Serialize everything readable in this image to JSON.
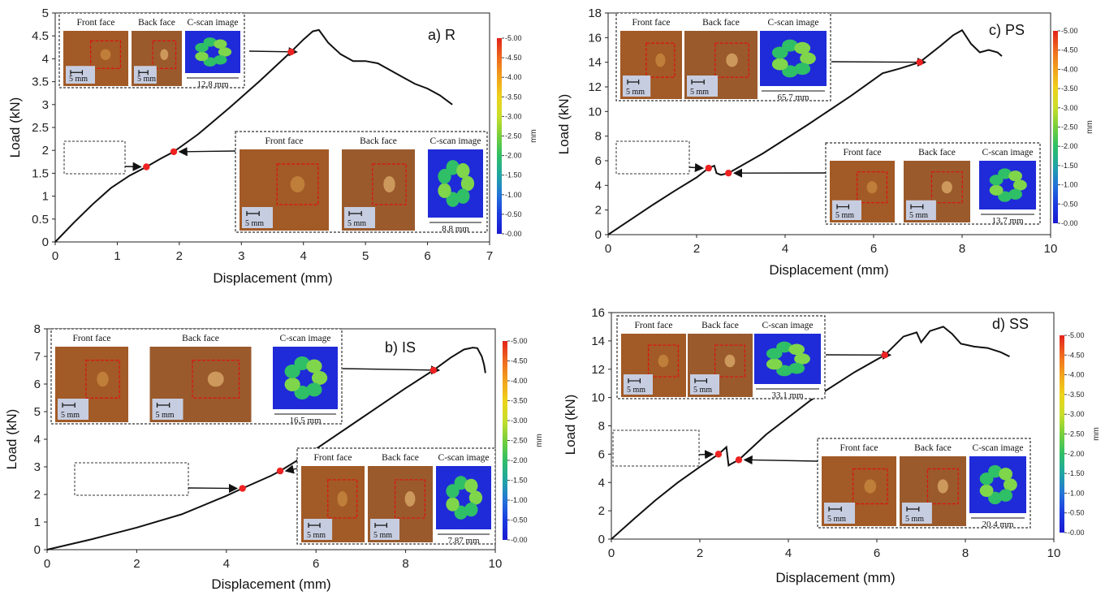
{
  "colors": {
    "curve": "#111111",
    "marker": "#ee2222",
    "inset_box": "#333333",
    "roi_box": "#dd1111",
    "cscan_bg": "#1f2bd8"
  },
  "colorbar": {
    "unit": "mm",
    "labels": [
      "-5.00",
      "-4.50",
      "-4.00",
      "-3.50",
      "-3.00",
      "-2.50",
      "-2.00",
      "-1.50",
      "-1.00",
      "-0.50",
      "-0.00"
    ],
    "stops": [
      "#e2231a",
      "#ef6a1f",
      "#f2a21c",
      "#eed21a",
      "#c8de2b",
      "#76cf3a",
      "#2fbf66",
      "#1fa6a4",
      "#2474d8",
      "#1b3be0",
      "#1a1ad0"
    ]
  },
  "inset_text": {
    "front": "Front face",
    "back": "Back face",
    "cscan": "C-scan image"
  },
  "chart_data": [
    {
      "id": "R",
      "type": "line",
      "title": "a) R",
      "xlabel": "Displacement (mm)",
      "ylabel": "Load (kN)",
      "xlim": [
        0,
        7
      ],
      "ylim": [
        0,
        5
      ],
      "xticks": [
        "0",
        "1",
        "2",
        "3",
        "4",
        "5",
        "6",
        "7"
      ],
      "yticks": [
        "0",
        "0.5",
        "1",
        "1.5",
        "2",
        "2.5",
        "3",
        "3.5",
        "4",
        "4.5",
        "5"
      ],
      "x": [
        0,
        0.3,
        0.6,
        0.9,
        1.2,
        1.47,
        1.7,
        1.91,
        2.3,
        2.8,
        3.3,
        3.8,
        4.0,
        4.15,
        4.25,
        4.4,
        4.6,
        4.8,
        5.0,
        5.2,
        5.4,
        5.6,
        5.8,
        6.0,
        6.2,
        6.4
      ],
      "y": [
        0,
        0.42,
        0.82,
        1.18,
        1.45,
        1.64,
        1.82,
        1.97,
        2.35,
        2.92,
        3.52,
        4.15,
        4.42,
        4.6,
        4.63,
        4.35,
        4.1,
        3.95,
        3.95,
        3.9,
        3.75,
        3.6,
        3.45,
        3.35,
        3.2,
        3.0
      ],
      "markers": [
        {
          "x": 1.47,
          "y": 1.64
        },
        {
          "x": 1.91,
          "y": 1.97
        },
        {
          "x": 3.8,
          "y": 4.15
        }
      ],
      "insets": {
        "upper": {
          "dim": "12.8 mm",
          "scale": "5 mm"
        },
        "lower": {
          "dim": "8.8 mm",
          "scale": "5 mm"
        }
      }
    },
    {
      "id": "IS",
      "type": "line",
      "title": "b) IS",
      "xlabel": "Displacement (mm)",
      "ylabel": "Load (kN)",
      "xlim": [
        0,
        10
      ],
      "ylim": [
        0,
        8
      ],
      "xticks": [
        "0",
        "2",
        "4",
        "6",
        "8",
        "10"
      ],
      "yticks": [
        "0",
        "1",
        "2",
        "3",
        "4",
        "5",
        "6",
        "7",
        "8"
      ],
      "x": [
        0,
        1,
        2,
        3,
        4,
        4.36,
        5,
        5.2,
        6,
        7,
        8,
        8.62,
        9,
        9.3,
        9.5,
        9.6,
        9.7,
        9.75,
        9.78
      ],
      "y": [
        0,
        0.38,
        0.8,
        1.28,
        1.95,
        2.22,
        2.68,
        2.85,
        3.65,
        4.75,
        5.85,
        6.5,
        6.95,
        7.25,
        7.32,
        7.3,
        7.0,
        6.7,
        6.4
      ],
      "markers": [
        {
          "x": 4.36,
          "y": 2.22
        },
        {
          "x": 5.2,
          "y": 2.85
        },
        {
          "x": 8.62,
          "y": 6.5
        }
      ],
      "insets": {
        "upper": {
          "dim": "16.5 mm",
          "scale": "5 mm"
        },
        "lower": {
          "dim": "7.87 mm",
          "scale": "5 mm"
        }
      }
    },
    {
      "id": "PS",
      "type": "line",
      "title": "c) PS",
      "xlabel": "Displacement (mm)",
      "ylabel": "Load (kN)",
      "xlim": [
        0,
        10
      ],
      "ylim": [
        0,
        18
      ],
      "xticks": [
        "0",
        "2",
        "4",
        "6",
        "8",
        "10"
      ],
      "yticks": [
        "0",
        "2",
        "4",
        "6",
        "8",
        "10",
        "12",
        "14",
        "16",
        "18"
      ],
      "x": [
        0,
        0.5,
        1,
        1.5,
        2,
        2.27,
        2.4,
        2.45,
        2.55,
        2.72,
        3.5,
        4.5,
        5.5,
        6.2,
        6.6,
        7.04,
        7.5,
        7.8,
        8.0,
        8.2,
        8.4,
        8.6,
        8.8,
        8.9
      ],
      "y": [
        0,
        1.2,
        2.4,
        3.55,
        4.65,
        5.4,
        5.6,
        5.0,
        4.85,
        5.0,
        6.6,
        8.9,
        11.3,
        13.1,
        13.5,
        14.0,
        15.3,
        16.2,
        16.6,
        15.5,
        14.8,
        15.0,
        14.8,
        14.5
      ],
      "markers": [
        {
          "x": 2.27,
          "y": 5.4
        },
        {
          "x": 2.72,
          "y": 5.0
        },
        {
          "x": 7.04,
          "y": 14.0
        }
      ],
      "insets": {
        "upper": {
          "dim": "65.7 mm",
          "scale": "5 mm"
        },
        "lower": {
          "dim": "13.7 mm",
          "scale": "5 mm"
        }
      }
    },
    {
      "id": "SS",
      "type": "line",
      "title": "d) SS",
      "xlabel": "Displacement (mm)",
      "ylabel": "Load (kN)",
      "xlim": [
        0,
        10
      ],
      "ylim": [
        0,
        16
      ],
      "xticks": [
        "0",
        "2",
        "4",
        "6",
        "8",
        "10"
      ],
      "yticks": [
        "0",
        "2",
        "4",
        "6",
        "8",
        "10",
        "12",
        "14",
        "16"
      ],
      "x": [
        0,
        0.5,
        1,
        1.5,
        2,
        2.42,
        2.6,
        2.65,
        2.7,
        2.88,
        3.5,
        4.5,
        5.5,
        6.18,
        6.6,
        6.9,
        7.0,
        7.2,
        7.5,
        7.7,
        7.9,
        8.2,
        8.5,
        8.8,
        9.0
      ],
      "y": [
        0,
        1.4,
        2.75,
        4.0,
        5.1,
        6.0,
        6.5,
        5.2,
        5.3,
        5.6,
        7.4,
        9.8,
        11.8,
        13.0,
        14.3,
        14.6,
        13.9,
        14.7,
        15.0,
        14.5,
        13.8,
        13.6,
        13.5,
        13.2,
        12.9
      ],
      "markers": [
        {
          "x": 2.42,
          "y": 6.0
        },
        {
          "x": 2.88,
          "y": 5.6
        },
        {
          "x": 6.18,
          "y": 13.0
        }
      ],
      "insets": {
        "upper": {
          "dim": "33.1 mm",
          "scale": "5 mm"
        },
        "lower": {
          "dim": "20.4 mm",
          "scale": "5 mm"
        }
      }
    }
  ]
}
